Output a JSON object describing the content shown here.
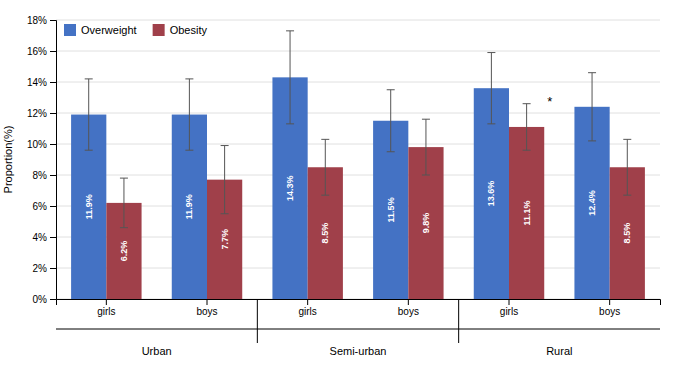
{
  "chart_data": {
    "type": "bar",
    "categories": [
      "girls",
      "boys",
      "girls",
      "boys",
      "girls",
      "boys"
    ],
    "category_groups": [
      "Urban",
      "Semi-urban",
      "Rural"
    ],
    "series": [
      {
        "name": "Overweight",
        "color": "#4472C4",
        "values": [
          11.9,
          11.9,
          14.3,
          11.5,
          13.6,
          12.4
        ],
        "value_labels": [
          "11.9%",
          "11.9%",
          "14.3%",
          "11.5%",
          "13.6%",
          "12.4%"
        ],
        "errors": [
          2.3,
          2.3,
          3.0,
          2.0,
          2.3,
          2.2
        ]
      },
      {
        "name": "Obesity",
        "color": "#A0404A",
        "values": [
          6.2,
          7.7,
          8.5,
          9.8,
          11.1,
          8.5
        ],
        "value_labels": [
          "6.2%",
          "7.7%",
          "8.5%",
          "9.8%",
          "11.1%",
          "8.5%"
        ],
        "errors": [
          1.6,
          2.2,
          1.8,
          1.8,
          1.5,
          1.8
        ]
      }
    ],
    "y_label": "Proportion(%)",
    "ylim": [
      0,
      18
    ],
    "yticks": [
      {
        "value": 0,
        "label": "0%"
      },
      {
        "value": 2,
        "label": "2%"
      },
      {
        "value": 4,
        "label": "4%"
      },
      {
        "value": 6,
        "label": "6%"
      },
      {
        "value": 8,
        "label": "8%"
      },
      {
        "value": 10,
        "label": "10%"
      },
      {
        "value": 12,
        "label": "12%"
      },
      {
        "value": 14,
        "label": "14%"
      },
      {
        "value": 16,
        "label": "16%"
      },
      {
        "value": 18,
        "label": "18%"
      }
    ],
    "grid": true,
    "legend": "upper left",
    "data_labels": true,
    "annotations": [
      {
        "text": "*",
        "series": 1,
        "index": 4
      }
    ]
  }
}
